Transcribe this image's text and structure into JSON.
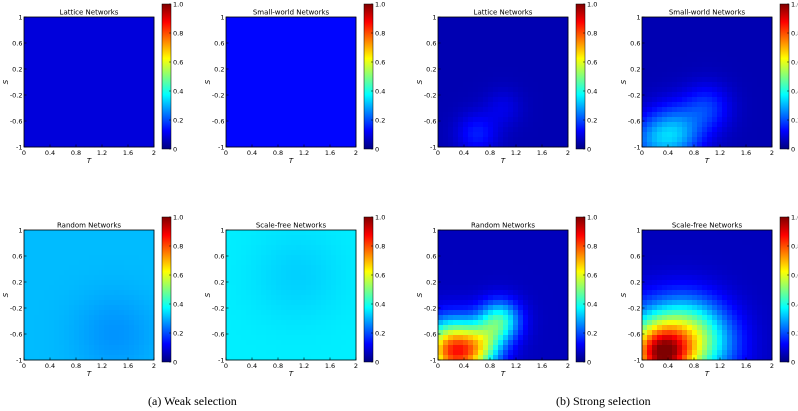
{
  "captions": [
    "(a)  Weak selection",
    "(b)  Strong selection"
  ],
  "colormap": [
    "#00007f",
    "#0000ff",
    "#007fff",
    "#00ffff",
    "#7fff7f",
    "#ffff00",
    "#ff7f00",
    "#ff0000",
    "#7f0000"
  ],
  "chart_data": [
    {
      "type": "heatmap",
      "group": "weak",
      "title": "Lattice Networks",
      "xlabel": "T",
      "ylabel": "S",
      "xlim": [
        0,
        2
      ],
      "ylim": [
        -1,
        1
      ],
      "xticks": [
        "0",
        "0.4",
        "0.8",
        "1.2",
        "1.6",
        "2"
      ],
      "yticks": [
        "-1",
        "-0.6",
        "-0.2",
        "0.2",
        "0.6",
        "1"
      ],
      "colorbar": {
        "range": [
          0,
          1
        ],
        "ticks": [
          "0",
          "0.2",
          "0.4",
          "0.6",
          "0.8",
          "1.0"
        ]
      },
      "base": 0.09,
      "blobs": []
    },
    {
      "type": "heatmap",
      "group": "weak",
      "title": "Small-world Networks",
      "xlabel": "T",
      "ylabel": "S",
      "xlim": [
        0,
        2
      ],
      "ylim": [
        -1,
        1
      ],
      "xticks": [
        "0",
        "0.4",
        "0.8",
        "1.2",
        "1.6",
        "2"
      ],
      "yticks": [
        "-1",
        "-0.6",
        "-0.2",
        "0.2",
        "0.6",
        "1"
      ],
      "colorbar": {
        "range": [
          0,
          1
        ],
        "ticks": [
          "0",
          "0.2",
          "0.4",
          "0.6",
          "0.8",
          "1.0"
        ]
      },
      "base": 0.13,
      "blobs": []
    },
    {
      "type": "heatmap",
      "group": "strong",
      "title": "Lattice Networks",
      "xlabel": "T",
      "ylabel": "S",
      "xlim": [
        0,
        2
      ],
      "ylim": [
        -1,
        1
      ],
      "xticks": [
        "0",
        "0.4",
        "0.8",
        "1.2",
        "1.6",
        "2"
      ],
      "yticks": [
        "-1",
        "-0.6",
        "-0.2",
        "0.2",
        "0.6",
        "1"
      ],
      "colorbar": {
        "range": [
          0,
          1
        ],
        "ticks": [
          "0",
          "0.2",
          "0.4",
          "0.6",
          "0.8",
          "1.0"
        ]
      },
      "base": 0.05,
      "blobs": [
        {
          "t": 0.6,
          "s": -0.8,
          "r": 0.22,
          "v": 0.1
        },
        {
          "t": 1.0,
          "s": -0.4,
          "r": 0.2,
          "v": 0.05
        }
      ]
    },
    {
      "type": "heatmap",
      "group": "strong",
      "title": "Small-world Networks",
      "xlabel": "T",
      "ylabel": "S",
      "xlim": [
        0,
        2
      ],
      "ylim": [
        -1,
        1
      ],
      "xticks": [
        "0",
        "0.4",
        "0.8",
        "1.2",
        "1.6",
        "2"
      ],
      "yticks": [
        "-1",
        "-0.6",
        "-0.2",
        "0.2",
        "0.6",
        "1"
      ],
      "colorbar": {
        "range": [
          0,
          1
        ],
        "ticks": [
          "0",
          "0.2",
          "0.4",
          "0.6",
          "0.8",
          "1.0"
        ]
      },
      "base": 0.05,
      "blobs": [
        {
          "t": 0.5,
          "s": -0.8,
          "r": 0.3,
          "v": 0.25
        },
        {
          "t": 1.0,
          "s": -0.4,
          "r": 0.25,
          "v": 0.12
        },
        {
          "t": 0.1,
          "s": -0.9,
          "r": 0.25,
          "v": 0.12
        }
      ]
    },
    {
      "type": "heatmap",
      "group": "weak",
      "title": "Random Networks",
      "xlabel": "T",
      "ylabel": "S",
      "xlim": [
        0,
        2
      ],
      "ylim": [
        -1,
        1
      ],
      "xticks": [
        "0",
        "0.4",
        "0.8",
        "1.2",
        "1.6",
        "2"
      ],
      "yticks": [
        "-1",
        "-0.6",
        "-0.2",
        "0.2",
        "0.6",
        "1"
      ],
      "colorbar": {
        "range": [
          0,
          1
        ],
        "ticks": [
          "0",
          "0.2",
          "0.4",
          "0.6",
          "0.8",
          "1.0"
        ]
      },
      "base": 0.31,
      "blobs": [
        {
          "t": 1.4,
          "s": -0.6,
          "r": 0.45,
          "v": -0.04
        }
      ]
    },
    {
      "type": "heatmap",
      "group": "weak",
      "title": "Scale-free Networks",
      "xlabel": "T",
      "ylabel": "S",
      "xlim": [
        0,
        2
      ],
      "ylim": [
        -1,
        1
      ],
      "xticks": [
        "0",
        "0.4",
        "0.8",
        "1.2",
        "1.6",
        "2"
      ],
      "yticks": [
        "-1",
        "-0.6",
        "-0.2",
        "0.2",
        "0.6",
        "1"
      ],
      "colorbar": {
        "range": [
          0,
          1
        ],
        "ticks": [
          "0",
          "0.2",
          "0.4",
          "0.6",
          "0.8",
          "1.0"
        ]
      },
      "base": 0.36,
      "blobs": [
        {
          "t": 1.1,
          "s": 0.3,
          "r": 0.5,
          "v": -0.03
        }
      ]
    },
    {
      "type": "heatmap",
      "group": "strong",
      "title": "Random Networks",
      "xlabel": "T",
      "ylabel": "S",
      "xlim": [
        0,
        2
      ],
      "ylim": [
        -1,
        1
      ],
      "xticks": [
        "0",
        "0.4",
        "0.8",
        "1.2",
        "1.6",
        "2"
      ],
      "yticks": [
        "-1",
        "-0.6",
        "-0.2",
        "0.2",
        "0.6",
        "1"
      ],
      "colorbar": {
        "range": [
          0,
          1
        ],
        "ticks": [
          "0",
          "0.2",
          "0.4",
          "0.6",
          "0.8",
          "1.0"
        ]
      },
      "base": 0.06,
      "blobs": [
        {
          "t": 0.35,
          "s": -0.9,
          "r": 0.32,
          "v": 0.55
        },
        {
          "t": 0.1,
          "s": -0.8,
          "r": 0.3,
          "v": 0.3
        },
        {
          "t": 0.95,
          "s": -0.4,
          "r": 0.22,
          "v": 0.35
        },
        {
          "t": 0.7,
          "s": -0.75,
          "r": 0.22,
          "v": 0.2
        }
      ]
    },
    {
      "type": "heatmap",
      "group": "strong",
      "title": "Scale-free Networks",
      "xlabel": "T",
      "ylabel": "S",
      "xlim": [
        0,
        2
      ],
      "ylim": [
        -1,
        1
      ],
      "xticks": [
        "0",
        "0.4",
        "0.8",
        "1.2",
        "1.6",
        "2"
      ],
      "yticks": [
        "-1",
        "-0.6",
        "-0.2",
        "0.2",
        "0.6",
        "1"
      ],
      "colorbar": {
        "range": [
          0,
          1
        ],
        "ticks": [
          "0",
          "0.2",
          "0.4",
          "0.6",
          "0.8",
          "1.0"
        ]
      },
      "base": 0.06,
      "blobs": [
        {
          "t": 0.3,
          "s": -0.95,
          "r": 0.32,
          "v": 0.6
        },
        {
          "t": 0.2,
          "s": -0.7,
          "r": 0.42,
          "v": 0.3
        },
        {
          "t": 0.9,
          "s": -0.75,
          "r": 0.4,
          "v": 0.32
        },
        {
          "t": 0.7,
          "s": -0.4,
          "r": 0.35,
          "v": 0.12
        }
      ]
    }
  ]
}
